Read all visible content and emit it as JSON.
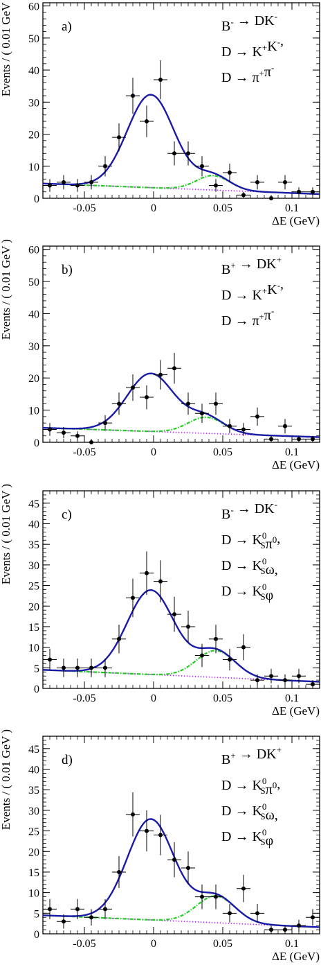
{
  "chart_data": [
    {
      "type": "scatter",
      "panel_label": "a)",
      "ann_lines": [
        [
          {
            "t": "B"
          },
          {
            "t": "-",
            "sup": true
          },
          {
            "t": " → DK"
          },
          {
            "t": "-",
            "sup": true
          }
        ],
        [
          {
            "t": "D → K"
          },
          {
            "t": "+",
            "sup": true
          },
          {
            "t": "K"
          },
          {
            "t": "-",
            "sup": true
          },
          {
            "t": ","
          }
        ],
        [
          {
            "t": "D → π"
          },
          {
            "t": "+",
            "sup": true
          },
          {
            "t": "π"
          },
          {
            "t": "-",
            "sup": true
          }
        ]
      ],
      "xlabel": "ΔE (GeV)",
      "ylabel": "Events / ( 0.01 GeV )",
      "xlim": [
        -0.08,
        0.12
      ],
      "ylim": [
        0,
        61
      ],
      "xticks": [
        "-0.05",
        "0",
        "0.05",
        "0.1"
      ],
      "yticks": [
        "0",
        "10",
        "20",
        "30",
        "40",
        "50",
        "60"
      ],
      "points": {
        "x": [
          -0.075,
          -0.065,
          -0.055,
          -0.045,
          -0.035,
          -0.025,
          -0.015,
          -0.005,
          0.005,
          0.015,
          0.025,
          0.035,
          0.045,
          0.055,
          0.065,
          0.075,
          0.085,
          0.095,
          0.105,
          0.115
        ],
        "y": [
          4,
          5,
          4,
          5,
          10,
          19,
          32,
          24,
          37,
          14,
          14,
          10,
          4,
          8,
          1,
          5,
          0,
          5,
          2,
          2
        ]
      },
      "fit": {
        "peak_amp": 29,
        "peak_mean": -0.002,
        "peak_sigma": 0.017,
        "bkg2_amp": 4.5,
        "bkg2_mean": 0.043,
        "bkg2_sigma": 0.012,
        "comb_at_min": 4.6,
        "comb_at_max": 1.3
      }
    },
    {
      "type": "scatter",
      "panel_label": "b)",
      "ann_lines": [
        [
          {
            "t": "B"
          },
          {
            "t": "+",
            "sup": true
          },
          {
            "t": " → DK"
          },
          {
            "t": "+",
            "sup": true
          }
        ],
        [
          {
            "t": "D → K"
          },
          {
            "t": "+",
            "sup": true
          },
          {
            "t": "K"
          },
          {
            "t": "-",
            "sup": true
          },
          {
            "t": ","
          }
        ],
        [
          {
            "t": "D → π"
          },
          {
            "t": "+",
            "sup": true
          },
          {
            "t": "π"
          },
          {
            "t": "-",
            "sup": true
          }
        ]
      ],
      "xlabel": "ΔE (GeV)",
      "ylabel": "Events / ( 0.01 GeV )",
      "xlim": [
        -0.08,
        0.12
      ],
      "ylim": [
        0,
        61
      ],
      "xticks": [
        "-0.05",
        "0",
        "0.05",
        "0.1"
      ],
      "yticks": [
        "0",
        "10",
        "20",
        "30",
        "40",
        "50",
        "60"
      ],
      "points": {
        "x": [
          -0.075,
          -0.065,
          -0.055,
          -0.045,
          -0.035,
          -0.025,
          -0.015,
          -0.005,
          0.005,
          0.015,
          0.025,
          0.035,
          0.045,
          0.055,
          0.065,
          0.075,
          0.085,
          0.095,
          0.105,
          0.115
        ],
        "y": [
          4,
          3,
          2,
          0,
          6,
          12,
          17,
          14,
          21,
          23,
          12,
          9,
          12,
          5,
          4,
          8,
          1,
          5,
          1,
          1
        ]
      },
      "fit": {
        "peak_amp": 18,
        "peak_mean": -0.002,
        "peak_sigma": 0.017,
        "bkg2_amp": 5,
        "bkg2_mean": 0.038,
        "bkg2_sigma": 0.013,
        "comb_at_min": 4.5,
        "comb_at_max": 1.6
      }
    },
    {
      "type": "scatter",
      "panel_label": "c)",
      "ann_lines": [
        [
          {
            "t": "B"
          },
          {
            "t": "-",
            "sup": true
          },
          {
            "t": " → DK"
          },
          {
            "t": "-",
            "sup": true
          }
        ],
        [
          {
            "t": "D → K"
          },
          {
            "t": "0",
            "sup": true
          },
          {
            "t": "S",
            "sub": true
          },
          {
            "t": "π"
          },
          {
            "t": "0",
            "sup": true
          },
          {
            "t": ","
          }
        ],
        [
          {
            "t": "D → K"
          },
          {
            "t": "0",
            "sup": true
          },
          {
            "t": "S",
            "sub": true
          },
          {
            "t": "ω,"
          }
        ],
        [
          {
            "t": "D → K"
          },
          {
            "t": "0",
            "sup": true
          },
          {
            "t": "S",
            "sub": true
          },
          {
            "t": "φ"
          }
        ]
      ],
      "xlabel": "ΔE (GeV)",
      "ylabel": "Events / ( 0.01 GeV )",
      "xlim": [
        -0.08,
        0.12
      ],
      "ylim": [
        0,
        48
      ],
      "xticks": [
        "-0.05",
        "0",
        "0.05",
        "0.1"
      ],
      "yticks": [
        "0",
        "5",
        "10",
        "15",
        "20",
        "25",
        "30",
        "35",
        "40",
        "45"
      ],
      "points": {
        "x": [
          -0.075,
          -0.065,
          -0.055,
          -0.045,
          -0.035,
          -0.025,
          -0.015,
          -0.005,
          0.005,
          0.015,
          0.025,
          0.035,
          0.045,
          0.055,
          0.065,
          0.075,
          0.085,
          0.095,
          0.105,
          0.115
        ],
        "y": [
          7,
          5,
          5,
          5,
          5,
          12,
          22,
          28,
          26,
          18,
          15,
          8,
          12,
          7,
          10,
          2,
          3,
          2,
          3,
          1
        ]
      },
      "fit": {
        "peak_amp": 20.5,
        "peak_mean": -0.002,
        "peak_sigma": 0.017,
        "bkg2_amp": 6.5,
        "bkg2_mean": 0.045,
        "bkg2_sigma": 0.014,
        "comb_at_min": 4.5,
        "comb_at_max": 1.6
      }
    },
    {
      "type": "scatter",
      "panel_label": "d)",
      "ann_lines": [
        [
          {
            "t": "B"
          },
          {
            "t": "+",
            "sup": true
          },
          {
            "t": " → DK"
          },
          {
            "t": "+",
            "sup": true
          }
        ],
        [
          {
            "t": "D → K"
          },
          {
            "t": "0",
            "sup": true
          },
          {
            "t": "S",
            "sub": true
          },
          {
            "t": "π"
          },
          {
            "t": "0",
            "sup": true
          },
          {
            "t": ","
          }
        ],
        [
          {
            "t": "D → K"
          },
          {
            "t": "0",
            "sup": true
          },
          {
            "t": "S",
            "sub": true
          },
          {
            "t": "ω,"
          }
        ],
        [
          {
            "t": "D → K"
          },
          {
            "t": "0",
            "sup": true
          },
          {
            "t": "S",
            "sub": true
          },
          {
            "t": "φ"
          }
        ]
      ],
      "xlabel": "ΔE (GeV)",
      "ylabel": "Events / ( 0.01 GeV )",
      "xlim": [
        -0.08,
        0.12
      ],
      "ylim": [
        0,
        48
      ],
      "xticks": [
        "-0.05",
        "0",
        "0.05",
        "0.1"
      ],
      "yticks": [
        "0",
        "5",
        "10",
        "15",
        "20",
        "25",
        "30",
        "35",
        "40",
        "45"
      ],
      "points": {
        "x": [
          -0.075,
          -0.065,
          -0.055,
          -0.045,
          -0.035,
          -0.025,
          -0.015,
          -0.005,
          0.005,
          0.015,
          0.025,
          0.035,
          0.045,
          0.055,
          0.065,
          0.075,
          0.085,
          0.095,
          0.105,
          0.115
        ],
        "y": [
          6,
          3,
          6,
          4,
          6,
          15,
          29,
          25,
          24,
          18,
          16,
          9,
          9,
          5,
          11,
          5,
          1,
          1,
          2,
          4
        ]
      },
      "fit": {
        "peak_amp": 24.5,
        "peak_mean": -0.002,
        "peak_sigma": 0.017,
        "bkg2_amp": 6.5,
        "bkg2_mean": 0.045,
        "bkg2_sigma": 0.014,
        "comb_at_min": 4.5,
        "comb_at_max": 1.6
      }
    }
  ],
  "colors": {
    "fit_total": "#1a1aa8",
    "fit_peaking_bkg": "#22cc22",
    "fit_combinatorial": "#9933cc",
    "points": "#000000"
  }
}
